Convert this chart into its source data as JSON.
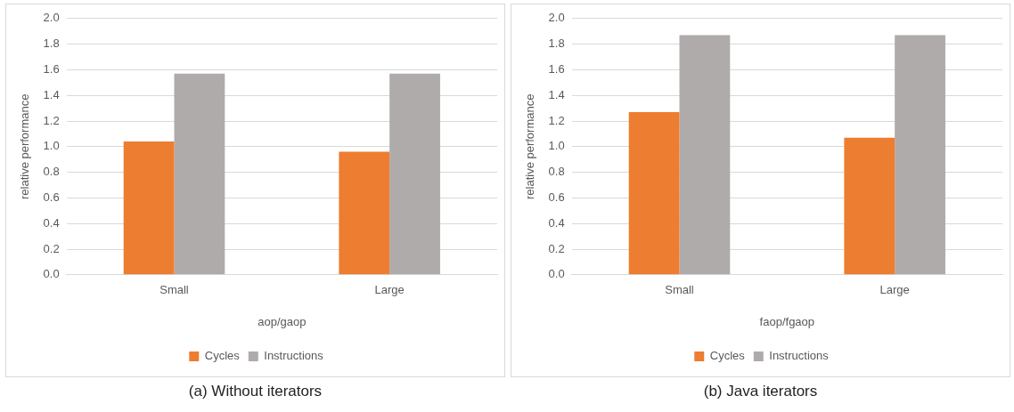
{
  "chart_data": [
    {
      "type": "bar",
      "categories": [
        "Small",
        "Large"
      ],
      "series": [
        {
          "name": "Cycles",
          "color": "#ed7d31",
          "values": [
            1.04,
            0.96
          ]
        },
        {
          "name": "Instructions",
          "color": "#afabab",
          "values": [
            1.57,
            1.57
          ]
        }
      ],
      "xlabel": "aop/gaop",
      "ylabel": "relative performance",
      "ylim": [
        0,
        2
      ],
      "yticks": [
        {
          "value": 0,
          "label": "0.0"
        },
        {
          "value": 0.2,
          "label": "0.2"
        },
        {
          "value": 0.4,
          "label": "0.4"
        },
        {
          "value": 0.6,
          "label": "0.6"
        },
        {
          "value": 0.8,
          "label": "0.8"
        },
        {
          "value": 1,
          "label": "1.0"
        },
        {
          "value": 1.2,
          "label": "1.2"
        },
        {
          "value": 1.4,
          "label": "1.4"
        },
        {
          "value": 1.6,
          "label": "1.6"
        },
        {
          "value": 1.8,
          "label": "1.8"
        },
        {
          "value": 2,
          "label": "2.0"
        }
      ],
      "grid": "y",
      "legend": "bottom",
      "annotations": [
        "(a) Without iterators"
      ]
    },
    {
      "type": "bar",
      "categories": [
        "Small",
        "Large"
      ],
      "series": [
        {
          "name": "Cycles",
          "color": "#ed7d31",
          "values": [
            1.27,
            1.07
          ]
        },
        {
          "name": "Instructions",
          "color": "#afabab",
          "values": [
            1.87,
            1.87
          ]
        }
      ],
      "xlabel": "faop/fgaop",
      "ylabel": "relative performance",
      "ylim": [
        0,
        2
      ],
      "yticks": [
        {
          "value": 0,
          "label": "0.0"
        },
        {
          "value": 0.2,
          "label": "0.2"
        },
        {
          "value": 0.4,
          "label": "0.4"
        },
        {
          "value": 0.6,
          "label": "0.6"
        },
        {
          "value": 0.8,
          "label": "0.8"
        },
        {
          "value": 1,
          "label": "1.0"
        },
        {
          "value": 1.2,
          "label": "1.2"
        },
        {
          "value": 1.4,
          "label": "1.4"
        },
        {
          "value": 1.6,
          "label": "1.6"
        },
        {
          "value": 1.8,
          "label": "1.8"
        },
        {
          "value": 2,
          "label": "2.0"
        }
      ],
      "grid": "y",
      "legend": "bottom",
      "annotations": [
        "(b) Java iterators"
      ]
    }
  ]
}
